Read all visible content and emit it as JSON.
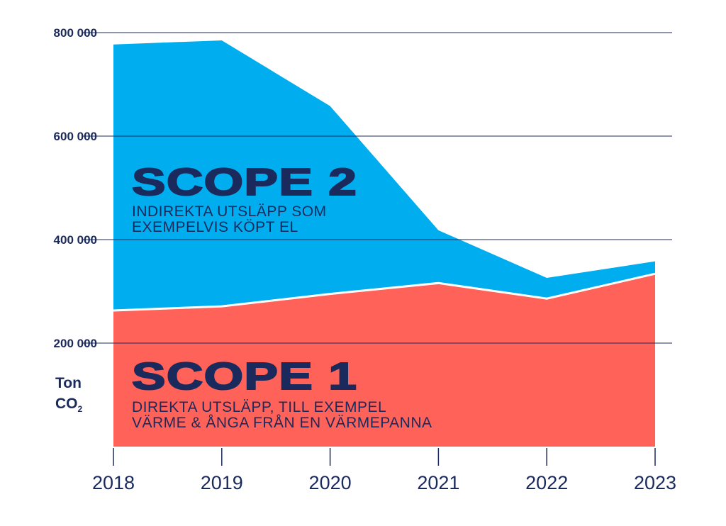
{
  "chart_data": {
    "type": "area",
    "stacked": true,
    "x": [
      "2018",
      "2019",
      "2020",
      "2021",
      "2022",
      "2023"
    ],
    "series": [
      {
        "name": "Scope 1",
        "values": [
          263000,
          271000,
          295000,
          316000,
          286000,
          334000
        ],
        "color": "#ff6259"
      },
      {
        "name": "Scope 2",
        "values": [
          514000,
          514000,
          363000,
          102000,
          40000,
          24000
        ],
        "color": "#00aeef"
      }
    ],
    "yticks": [
      200000,
      400000,
      600000,
      800000
    ],
    "ytick_labels": [
      "200 000",
      "400 000",
      "600 000",
      "800 000"
    ],
    "ylim": [
      0,
      800000
    ],
    "ylabel": "Ton",
    "ylabel_line2": "CO",
    "ylabel_sub": "2",
    "grid": true,
    "annotations": {
      "scope2_title": "SCOPE 2",
      "scope2_desc1": "INDIREKTA UTSLÄPP SOM",
      "scope2_desc2": "EXEMPELVIS KÖPT EL",
      "scope1_title": "SCOPE 1",
      "scope1_desc1": "DIREKTA UTSLÄPP, TILL EXEMPEL",
      "scope1_desc2": "VÄRME & ÅNGA FRÅN EN VÄRMEPANNA"
    },
    "colors": {
      "text": "#1b2a5c",
      "grid": "#1b2a5c"
    }
  }
}
